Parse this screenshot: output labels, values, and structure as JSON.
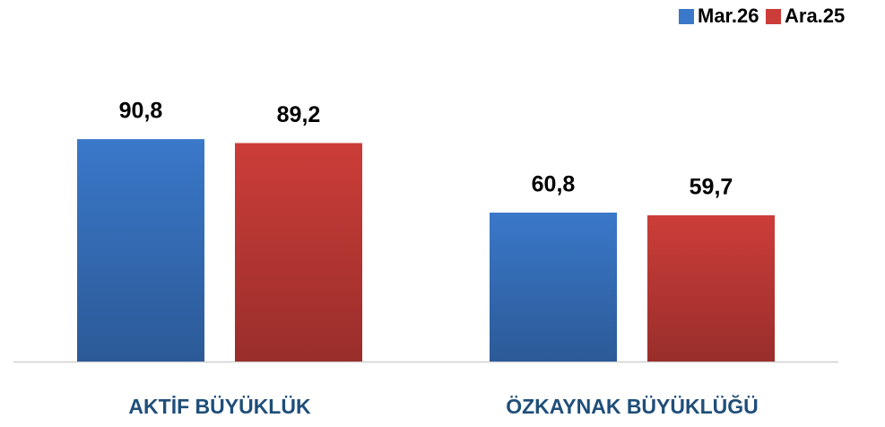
{
  "chart_data": {
    "type": "bar",
    "categories": [
      "AKTİF BÜYÜKLÜK",
      "ÖZKAYNAK BÜYÜKLÜĞÜ"
    ],
    "series": [
      {
        "name": "Mar.26",
        "color": "#3a78c9",
        "values": [
          90.8,
          60.8
        ],
        "value_labels": [
          "90,8",
          "60,8"
        ]
      },
      {
        "name": "Ara.25",
        "color": "#cc3d39",
        "values": [
          89.2,
          59.7
        ],
        "value_labels": [
          "89,2",
          "59,7"
        ]
      }
    ],
    "ylim": [
      0,
      100
    ],
    "legend": "top-right"
  }
}
